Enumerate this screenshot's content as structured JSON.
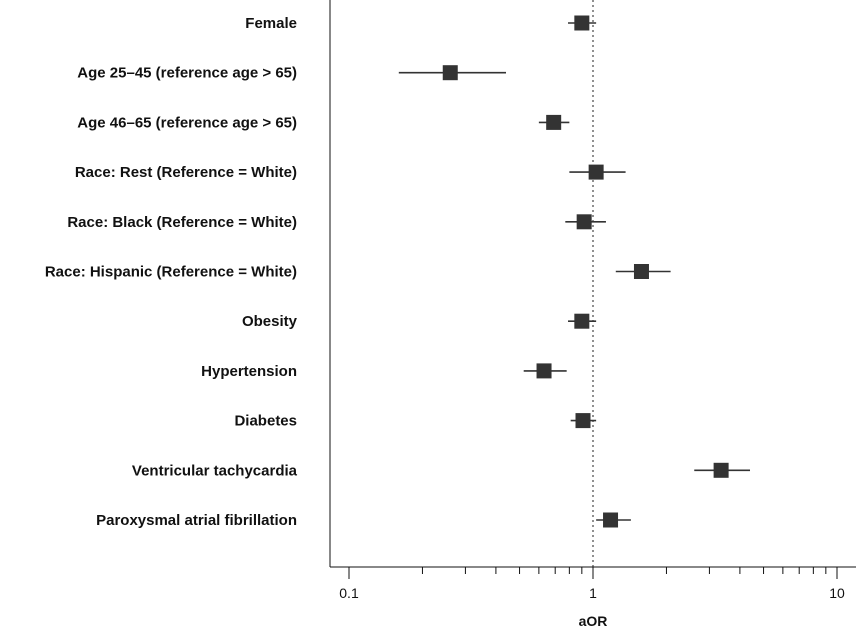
{
  "chart_data": {
    "type": "forest",
    "xlabel": "aOR",
    "x_scale": "log",
    "xlim": [
      0.07,
      11
    ],
    "reference_line": 1,
    "xticks_labeled": [
      {
        "value": 0.1,
        "label": "0.1"
      },
      {
        "value": 1,
        "label": "1"
      },
      {
        "value": 10,
        "label": "10"
      }
    ],
    "xticks_minor": [
      0.2,
      0.3,
      0.4,
      0.5,
      0.6,
      0.7,
      0.8,
      0.9,
      2,
      3,
      4,
      5,
      6,
      7,
      8,
      9
    ],
    "rows": [
      {
        "label": "Female",
        "aor": 0.9,
        "ci": [
          0.79,
          1.03
        ]
      },
      {
        "label": "Age 25–45 (reference age > 65)",
        "aor": 0.26,
        "ci": [
          0.16,
          0.44
        ]
      },
      {
        "label": "Age 46–65 (reference age > 65)",
        "aor": 0.69,
        "ci": [
          0.6,
          0.8
        ]
      },
      {
        "label": "Race: Rest (Reference = White)",
        "aor": 1.03,
        "ci": [
          0.8,
          1.36
        ]
      },
      {
        "label": "Race: Black (Reference = White)",
        "aor": 0.92,
        "ci": [
          0.77,
          1.13
        ]
      },
      {
        "label": "Race: Hispanic (Reference = White)",
        "aor": 1.58,
        "ci": [
          1.24,
          2.08
        ]
      },
      {
        "label": "Obesity",
        "aor": 0.9,
        "ci": [
          0.79,
          1.03
        ]
      },
      {
        "label": "Hypertension",
        "aor": 0.63,
        "ci": [
          0.52,
          0.78
        ]
      },
      {
        "label": "Diabetes",
        "aor": 0.91,
        "ci": [
          0.81,
          1.03
        ]
      },
      {
        "label": "Ventricular tachycardia",
        "aor": 3.35,
        "ci": [
          2.6,
          4.4
        ]
      },
      {
        "label": "Paroxysmal atrial fibrillation",
        "aor": 1.18,
        "ci": [
          1.03,
          1.43
        ]
      }
    ],
    "colors": {
      "marker": "#333333",
      "line": "#333333",
      "reference": "#555555",
      "axis": "#111111"
    }
  }
}
